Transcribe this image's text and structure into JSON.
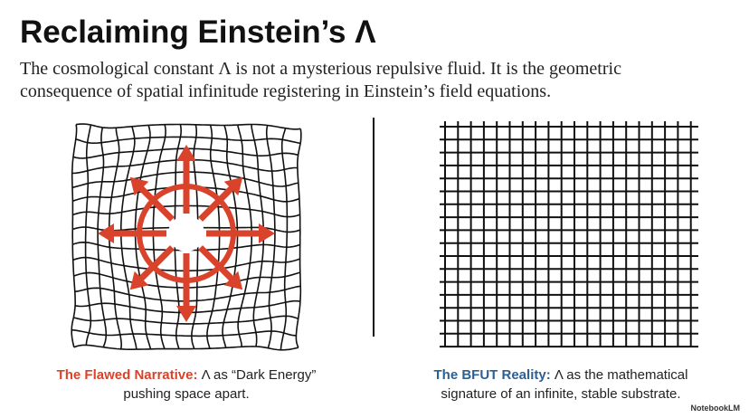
{
  "header": {
    "title": "Reclaiming Einstein’s Λ",
    "subtitle_lines": [
      "The cosmological constant Λ is not a mysterious repulsive fluid. It is the geometric",
      "consequence of spatial infinitude registering in Einstein’s field equations."
    ]
  },
  "left_caption": {
    "label": "The Flawed Narrative:",
    "lines": [
      "Λ as “Dark Energy”",
      "pushing space apart."
    ]
  },
  "right_caption": {
    "label": "The BFUT Reality:",
    "lines": [
      "Λ as the mathematical",
      "signature of an infinite, stable substrate."
    ]
  },
  "watermark": "NotebookLM"
}
